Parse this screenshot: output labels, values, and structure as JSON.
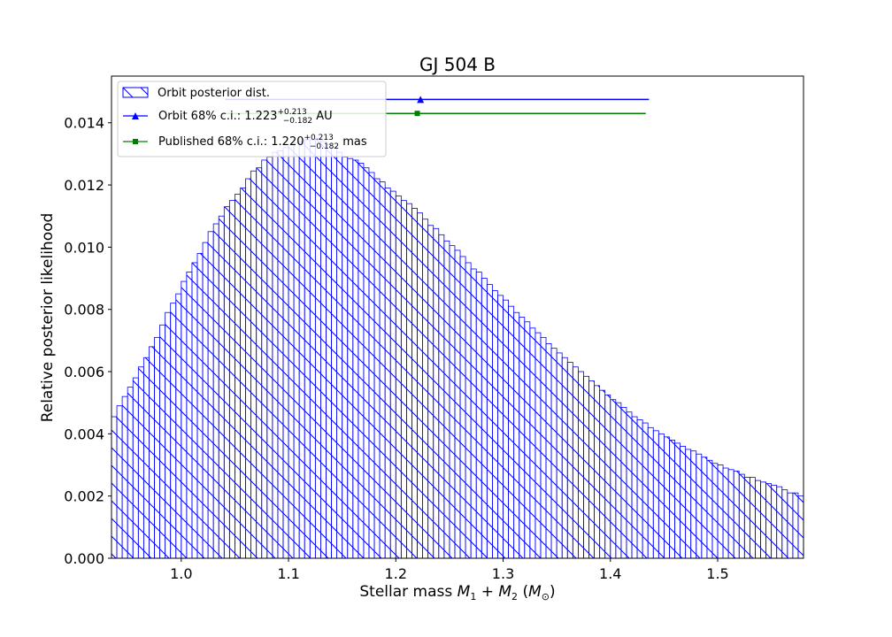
{
  "chart_data": {
    "type": "bar",
    "title": "GJ 504 B",
    "xlabel": "Stellar mass M₁ + M₂ (M⊙)",
    "ylabel": "Relative posterior likelihood",
    "xlim": [
      0.935,
      1.58
    ],
    "ylim": [
      0.0,
      0.0155
    ],
    "x_ticks": [
      {
        "value": 1.0,
        "label": "1.0"
      },
      {
        "value": 1.1,
        "label": "1.1"
      },
      {
        "value": 1.2,
        "label": "1.2"
      },
      {
        "value": 1.3,
        "label": "1.3"
      },
      {
        "value": 1.4,
        "label": "1.4"
      },
      {
        "value": 1.5,
        "label": "1.5"
      }
    ],
    "y_ticks": [
      {
        "value": 0.0,
        "label": "0.000"
      },
      {
        "value": 0.002,
        "label": "0.002"
      },
      {
        "value": 0.004,
        "label": "0.004"
      },
      {
        "value": 0.006,
        "label": "0.006"
      },
      {
        "value": 0.008,
        "label": "0.008"
      },
      {
        "value": 0.01,
        "label": "0.010"
      },
      {
        "value": 0.012,
        "label": "0.012"
      },
      {
        "value": 0.014,
        "label": "0.014"
      }
    ],
    "grid": false,
    "histogram": {
      "name": "Orbit posterior dist.",
      "color": "#0000ff",
      "hatch": "diagonal",
      "bin_start": 0.935,
      "bin_width": 0.005,
      "values": [
        0.00455,
        0.0049,
        0.0052,
        0.0055,
        0.0058,
        0.00615,
        0.00645,
        0.0068,
        0.0071,
        0.0075,
        0.0079,
        0.0082,
        0.0085,
        0.0089,
        0.0092,
        0.0095,
        0.0098,
        0.01015,
        0.0105,
        0.01075,
        0.011,
        0.0113,
        0.0115,
        0.0117,
        0.0119,
        0.0122,
        0.01245,
        0.01255,
        0.0128,
        0.0129,
        0.01305,
        0.0131,
        0.0132,
        0.0133,
        0.01335,
        0.0134,
        0.01345,
        0.01345,
        0.0135,
        0.0134,
        0.0133,
        0.0132,
        0.01305,
        0.0129,
        0.01285,
        0.0128,
        0.0127,
        0.01255,
        0.0124,
        0.0122,
        0.0121,
        0.0119,
        0.0118,
        0.01165,
        0.0115,
        0.0114,
        0.01125,
        0.0111,
        0.0109,
        0.0107,
        0.0106,
        0.0104,
        0.0102,
        0.01005,
        0.0099,
        0.0097,
        0.0095,
        0.0093,
        0.0092,
        0.009,
        0.0088,
        0.0086,
        0.00845,
        0.0083,
        0.0081,
        0.0079,
        0.00775,
        0.0076,
        0.0074,
        0.00725,
        0.0071,
        0.0069,
        0.00675,
        0.0066,
        0.00645,
        0.0063,
        0.00615,
        0.006,
        0.00585,
        0.0057,
        0.00555,
        0.0054,
        0.00525,
        0.0051,
        0.005,
        0.00485,
        0.0047,
        0.00455,
        0.00445,
        0.00435,
        0.0042,
        0.0041,
        0.004,
        0.0039,
        0.0038,
        0.0037,
        0.0036,
        0.0035,
        0.00345,
        0.00335,
        0.00325,
        0.00315,
        0.00305,
        0.003,
        0.0029,
        0.00285,
        0.0028,
        0.0027,
        0.0026,
        0.0026,
        0.0025,
        0.00245,
        0.0024,
        0.00235,
        0.0023,
        0.0022,
        0.0021,
        0.0021,
        0.002
      ]
    },
    "series": [
      {
        "name": "Orbit 68% c.i.: 1.223",
        "sup": "+0.213",
        "sub": "−0.182",
        "suffix": " AU",
        "marker": "triangle",
        "color": "#0000ff",
        "center": 1.223,
        "lower": 1.041,
        "upper": 1.436,
        "y": 0.01475
      },
      {
        "name": "Published 68% c.i.:  1.220",
        "sup": "+0.213",
        "sub": "−0.182",
        "suffix": " mas",
        "marker": "square",
        "color": "#008000",
        "center": 1.22,
        "lower": 1.038,
        "upper": 1.433,
        "y": 0.0143
      }
    ],
    "legend": {
      "position": "upper-left",
      "entries": [
        "Orbit posterior dist.",
        "Orbit 68% c.i.",
        "Published 68% c.i."
      ]
    }
  }
}
